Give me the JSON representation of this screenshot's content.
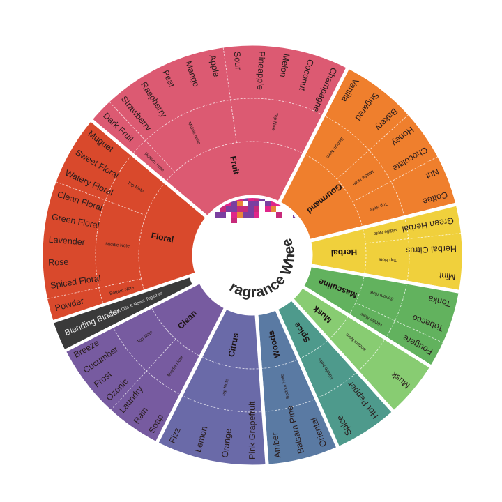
{
  "title": "Fragrance Wheel",
  "mosaic_colors": [
    "#e0258a",
    "#7b3fa0",
    "#e8873a",
    "#c72a7a"
  ],
  "categories": [
    {
      "label": "Floral",
      "color": "#d9492c",
      "notes": [
        {
          "label": "Bottom Note",
          "items": [
            "Powder"
          ]
        },
        {
          "label": "Middle Note",
          "items": [
            "Spiced Floral",
            "Rose",
            "Lavender",
            "Green Floral",
            "Clean Floral"
          ]
        },
        {
          "label": "Top Note",
          "items": [
            "Watery Floral",
            "Sweet Floral",
            "Muguet"
          ]
        }
      ]
    },
    {
      "label": "Fruit",
      "color": "#dc5a72",
      "notes": [
        {
          "label": "Bottom Note",
          "items": [
            "Dark Fruit"
          ]
        },
        {
          "label": "Middle Note",
          "items": [
            "Strawberry",
            "Raspberry",
            "Pear",
            "Mango",
            "Apple"
          ]
        },
        {
          "label": "Top Note",
          "items": [
            "Sour",
            "Pineapple",
            "Melon",
            "Coconut",
            "Champagne"
          ]
        }
      ]
    },
    {
      "label": "Gourmand",
      "color": "#ef7f2d",
      "notes": [
        {
          "label": "Bottom Note",
          "items": [
            "Vanilla",
            "Sugared",
            "Bakery"
          ]
        },
        {
          "label": "Middle Note",
          "items": [
            "Honey",
            "Chocolate"
          ]
        },
        {
          "label": "Top Note",
          "items": [
            "Nut",
            "Coffee"
          ]
        }
      ]
    },
    {
      "label": "Herbal",
      "color": "#f0d03c",
      "notes": [
        {
          "label": "Middle Note",
          "items": [
            "Green Herbal"
          ]
        },
        {
          "label": "Top Note",
          "items": [
            "Herbal Citrus",
            "Mint"
          ]
        }
      ]
    },
    {
      "label": "Masculine",
      "color": "#62b25e",
      "notes": [
        {
          "label": "Bottom Note",
          "items": [
            "Tonka",
            "Tobacco"
          ]
        },
        {
          "label": "Middle Note",
          "items": [
            "Fougere"
          ]
        }
      ]
    },
    {
      "label": "Musk",
      "color": "#88cc72",
      "notes": [
        {
          "label": "Bottom Note",
          "items": [
            "Musk"
          ]
        }
      ]
    },
    {
      "label": "Spice",
      "color": "#4e9a8c",
      "notes": [
        {
          "label": "Middle Note",
          "items": [
            "Hot Pepper",
            "Spice"
          ]
        }
      ]
    },
    {
      "label": "Woods",
      "color": "#5a7aa3",
      "notes": [
        {
          "label": "Bottom Note",
          "items": [
            "Oriental",
            "Balsam Pine",
            "Amber"
          ]
        }
      ]
    },
    {
      "label": "Citrus",
      "color": "#6a6aa8",
      "notes": [
        {
          "label": "Top Note",
          "items": [
            "Pink Grapefruit",
            "Orange",
            "Lemon",
            "Fizz"
          ]
        }
      ]
    },
    {
      "label": "Clean",
      "color": "#775ba0",
      "notes": [
        {
          "label": "Middle Note",
          "items": [
            "Soap",
            "Rain",
            "Laundry"
          ]
        },
        {
          "label": "Top Note",
          "items": [
            "Ozonic",
            "Frost",
            "Cucumber",
            "Breeze"
          ]
        }
      ]
    }
  ],
  "binder": {
    "label": "Blending Binder",
    "note": "Binds Oils & Notes Together",
    "color": "#3a3a3a"
  }
}
